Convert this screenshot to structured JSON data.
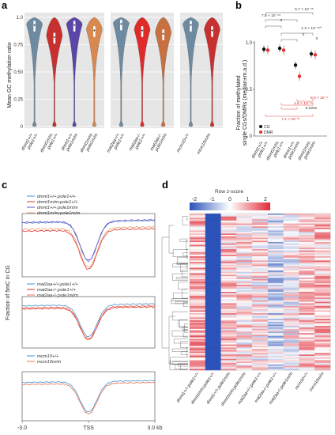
{
  "panels": {
    "a": "a",
    "b": "b",
    "c": "c",
    "d": "d"
  },
  "colors": {
    "wt": "#6d8aa0",
    "dnmt1": "#c83030",
    "pole1": "#5a46a8",
    "dp": "#d98850",
    "mat2aa": "#e02a2a",
    "mat2aa_pole1": "#c87040",
    "mcm10": "#c83030",
    "grid_bg": "#e6e6e6"
  },
  "chart_a": {
    "ylabel": "Mean GC methylation ratio",
    "yticks": [
      "0",
      "0.25",
      "0.50",
      "0.75",
      "1.0"
    ],
    "groups": [
      {
        "violins": [
          {
            "label": [
              "dnmt1+/+",
              "pole1+/+"
            ],
            "color": "#6d8aa0",
            "median": 0.93
          },
          {
            "label": [
              "dnmt1m/m",
              "pole1+/+"
            ],
            "color": "#c83030",
            "median": 0.82
          },
          {
            "label": [
              "dnmt1+/+",
              "pole1m/m"
            ],
            "color": "#5a46a8",
            "median": 0.93
          },
          {
            "label": [
              "dnmt1m/m",
              "pole1m/m"
            ],
            "color": "#d98850",
            "median": 0.88
          }
        ]
      },
      {
        "violins": [
          {
            "label": [
              "mat2aa+/+",
              "pole1+/+"
            ],
            "color": "#6d8aa0",
            "median": 0.94
          },
          {
            "label": [
              "mat2aa-/-",
              "pole1+/+"
            ],
            "color": "#e02a2a",
            "median": 0.88
          },
          {
            "label": [
              "mat2aa-/-",
              "pole1m/m"
            ],
            "color": "#c87040",
            "median": 0.85
          }
        ]
      },
      {
        "violins": [
          {
            "label": [
              "mcm10+/+"
            ],
            "color": "#6d8aa0",
            "median": 0.93
          },
          {
            "label": [
              "mcm10m/m"
            ],
            "color": "#c83030",
            "median": 0.88
          }
        ]
      }
    ]
  },
  "chart_b": {
    "ylabel": [
      "Fraction of methylated",
      "single CGs/DMRs (median±m.a.d.)"
    ],
    "yticks": [
      "0",
      "0.5",
      "1.0"
    ],
    "legend": [
      "CG",
      "DMR"
    ],
    "xlabels": [
      [
        "dnmt1+/+",
        "pole1+/+"
      ],
      [
        "dnmt1m/m",
        "pole1+/+"
      ],
      [
        "dnmt1+/+",
        "pole1m/m"
      ],
      [
        "dnmt1m/m",
        "pole1m/m"
      ]
    ],
    "cg": [
      0.93,
      0.94,
      0.76,
      0.88
    ],
    "dmr": [
      0.92,
      0.92,
      0.64,
      0.87
    ],
    "pvals_black": [
      "5.7 × 10⁻¹⁶",
      "7.8 × 10⁻⁵⁴",
      "0",
      "1.3 × 10⁻¹⁸⁰",
      "0",
      "0"
    ],
    "pvals_red": [
      "8.0 × 10⁻⁵",
      "1.8 × 10⁻¹⁹",
      "0.0261",
      "7.1 × 10⁻³⁷"
    ]
  },
  "chart_c": {
    "ylabel": "Fraction of 5mC in CG",
    "xticks": [
      "-3.0",
      "TSS",
      "3.0 kb"
    ],
    "blocks": [
      {
        "legend": [
          "dnmt1+/+;pole1+/+",
          "dnmt1m/m;pole1+/+",
          "dnmt1+/+;pole1m/m",
          "dnmt1m/m;pole1m/m"
        ],
        "colors": [
          "#4a90d0",
          "#e03030",
          "#6a50c0",
          "#e8a070"
        ]
      },
      {
        "legend": [
          "mat2aa+/+;pole1+/+",
          "mat2aa-/-;pole1+/+",
          "mat2aa-/-;pole1m/m"
        ],
        "colors": [
          "#4a90d0",
          "#e03030",
          "#e87050"
        ]
      },
      {
        "legend": [
          "mcm10+/+",
          "mcm10m/m"
        ],
        "colors": [
          "#4a90d0",
          "#e87050"
        ]
      }
    ]
  },
  "chart_d": {
    "legend_title": "Row z-score",
    "legend_ticks": [
      "-2",
      "-1",
      "0",
      "1",
      "2"
    ],
    "columns": [
      "dnmt1+/+;pole1+/+",
      "dnmt1m/m;pole1+/+",
      "dnmt1+/+;pole1m/m",
      "dnmt1m/m;pole1m/m",
      "mat2aa+/+;pole1+/+",
      "mat2aa-/-;pole1+/+",
      "mat2aa-/-;pole1m/m",
      "mcm10+/+",
      "mcm10m/m"
    ]
  }
}
